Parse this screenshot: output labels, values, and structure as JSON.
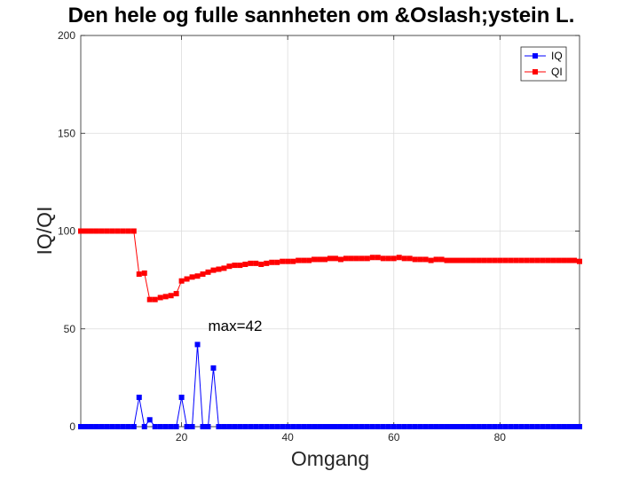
{
  "chart_data": {
    "type": "line",
    "title": "Den hele og fulle sannheten om &Oslash;ystein L.",
    "xlabel": "Omgang",
    "ylabel": "IQ/QI",
    "xlim": [
      1,
      95
    ],
    "ylim": [
      0,
      200
    ],
    "xticks": [
      20,
      40,
      60,
      80
    ],
    "yticks": [
      0,
      50,
      100,
      150,
      200
    ],
    "grid": true,
    "legend_location": "top-right",
    "annotation": {
      "text": "max=42",
      "x": 25,
      "y": 49
    },
    "series": [
      {
        "name": "IQ",
        "color": "#0000ff",
        "x": [
          1,
          2,
          3,
          4,
          5,
          6,
          7,
          8,
          9,
          10,
          11,
          12,
          13,
          14,
          15,
          16,
          17,
          18,
          19,
          20,
          21,
          22,
          23,
          24,
          25,
          26,
          27,
          28,
          29,
          30,
          31,
          32,
          33,
          34,
          35,
          36,
          37,
          38,
          39,
          40,
          41,
          42,
          43,
          44,
          45,
          46,
          47,
          48,
          49,
          50,
          51,
          52,
          53,
          54,
          55,
          56,
          57,
          58,
          59,
          60,
          61,
          62,
          63,
          64,
          65,
          66,
          67,
          68,
          69,
          70,
          71,
          72,
          73,
          74,
          75,
          76,
          77,
          78,
          79,
          80,
          81,
          82,
          83,
          84,
          85,
          86,
          87,
          88,
          89,
          90,
          91,
          92,
          93,
          94,
          95
        ],
        "values": [
          0,
          0,
          0,
          0,
          0,
          0,
          0,
          0,
          0,
          0,
          0,
          15,
          0,
          3.5,
          0,
          0,
          0,
          0,
          0,
          15,
          0,
          0,
          42,
          0,
          0,
          30,
          0,
          0,
          0,
          0,
          0,
          0,
          0,
          0,
          0,
          0,
          0,
          0,
          0,
          0,
          0,
          0,
          0,
          0,
          0,
          0,
          0,
          0,
          0,
          0,
          0,
          0,
          0,
          0,
          0,
          0,
          0,
          0,
          0,
          0,
          0,
          0,
          0,
          0,
          0,
          0,
          0,
          0,
          0,
          0,
          0,
          0,
          0,
          0,
          0,
          0,
          0,
          0,
          0,
          0,
          0,
          0,
          0,
          0,
          0,
          0,
          0,
          0,
          0,
          0,
          0,
          0,
          0,
          0,
          0
        ]
      },
      {
        "name": "QI",
        "color": "#ff0000",
        "x": [
          1,
          2,
          3,
          4,
          5,
          6,
          7,
          8,
          9,
          10,
          11,
          12,
          13,
          14,
          15,
          16,
          17,
          18,
          19,
          20,
          21,
          22,
          23,
          24,
          25,
          26,
          27,
          28,
          29,
          30,
          31,
          32,
          33,
          34,
          35,
          36,
          37,
          38,
          39,
          40,
          41,
          42,
          43,
          44,
          45,
          46,
          47,
          48,
          49,
          50,
          51,
          52,
          53,
          54,
          55,
          56,
          57,
          58,
          59,
          60,
          61,
          62,
          63,
          64,
          65,
          66,
          67,
          68,
          69,
          70,
          71,
          72,
          73,
          74,
          75,
          76,
          77,
          78,
          79,
          80,
          81,
          82,
          83,
          84,
          85,
          86,
          87,
          88,
          89,
          90,
          91,
          92,
          93,
          94,
          95
        ],
        "values": [
          100,
          100,
          100,
          100,
          100,
          100,
          100,
          100,
          100,
          100,
          100,
          78,
          78.5,
          65,
          65,
          66,
          66.5,
          67,
          68,
          74.5,
          75.5,
          76.5,
          77,
          78,
          79,
          80,
          80.5,
          81,
          82,
          82.5,
          82.5,
          83,
          83.5,
          83.5,
          83,
          83.5,
          84,
          84,
          84.5,
          84.5,
          84.5,
          85,
          85,
          85,
          85.5,
          85.5,
          85.5,
          86,
          86,
          85.5,
          86,
          86,
          86,
          86,
          86,
          86.5,
          86.5,
          86,
          86,
          86,
          86.5,
          86,
          86,
          85.5,
          85.5,
          85.5,
          85,
          85.5,
          85.5,
          85,
          85,
          85,
          85,
          85,
          85,
          85,
          85,
          85,
          85,
          85,
          85,
          85,
          85,
          85,
          85,
          85,
          85,
          85,
          85,
          85,
          85,
          85,
          85,
          85,
          84.5
        ]
      }
    ]
  }
}
